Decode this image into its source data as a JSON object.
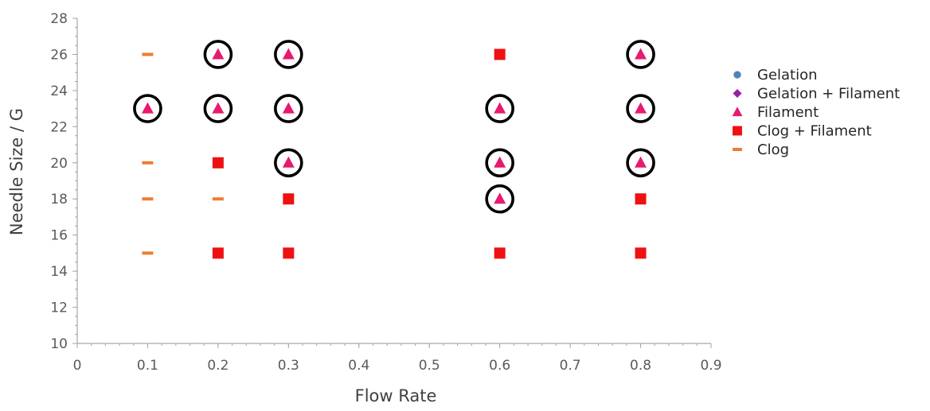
{
  "chart_data": {
    "type": "scatter",
    "title": "",
    "xlabel": "Flow Rate",
    "ylabel": "Needle Size / G",
    "xlim": [
      0,
      0.9
    ],
    "ylim": [
      10,
      28
    ],
    "x_ticks": [
      "0",
      "0.1",
      "0.2",
      "0.3",
      "0.4",
      "0.5",
      "0.6",
      "0.7",
      "0.8",
      "0.9"
    ],
    "y_ticks": [
      "10",
      "12",
      "14",
      "16",
      "18",
      "20",
      "22",
      "24",
      "26",
      "28"
    ],
    "grid": false,
    "legend_position": "right",
    "series": [
      {
        "name": "Gelation",
        "marker": "circle",
        "color": "#4f81bd",
        "points": []
      },
      {
        "name": "Gelation + Filament",
        "marker": "diamond",
        "color": "#9b1fa3",
        "points": []
      },
      {
        "name": "Filament",
        "marker": "triangle",
        "color": "#e8196f",
        "points": [
          {
            "x": 0.1,
            "y": 23
          },
          {
            "x": 0.2,
            "y": 26
          },
          {
            "x": 0.2,
            "y": 23
          },
          {
            "x": 0.3,
            "y": 26
          },
          {
            "x": 0.3,
            "y": 23
          },
          {
            "x": 0.3,
            "y": 20
          },
          {
            "x": 0.6,
            "y": 23
          },
          {
            "x": 0.6,
            "y": 20
          },
          {
            "x": 0.6,
            "y": 18
          },
          {
            "x": 0.8,
            "y": 26
          },
          {
            "x": 0.8,
            "y": 23
          },
          {
            "x": 0.8,
            "y": 20
          }
        ]
      },
      {
        "name": "Clog + Filament",
        "marker": "square",
        "color": "#ee1111",
        "points": [
          {
            "x": 0.2,
            "y": 20
          },
          {
            "x": 0.2,
            "y": 15
          },
          {
            "x": 0.3,
            "y": 18
          },
          {
            "x": 0.3,
            "y": 15
          },
          {
            "x": 0.6,
            "y": 26
          },
          {
            "x": 0.6,
            "y": 15
          },
          {
            "x": 0.8,
            "y": 18
          },
          {
            "x": 0.8,
            "y": 15
          }
        ]
      },
      {
        "name": "Clog",
        "marker": "dash",
        "color": "#ed7d31",
        "points": [
          {
            "x": 0.1,
            "y": 26
          },
          {
            "x": 0.1,
            "y": 20
          },
          {
            "x": 0.1,
            "y": 18
          },
          {
            "x": 0.1,
            "y": 15
          },
          {
            "x": 0.2,
            "y": 18
          }
        ]
      }
    ],
    "highlighted": [
      {
        "x": 0.1,
        "y": 23
      },
      {
        "x": 0.2,
        "y": 26
      },
      {
        "x": 0.2,
        "y": 23
      },
      {
        "x": 0.3,
        "y": 26
      },
      {
        "x": 0.3,
        "y": 23
      },
      {
        "x": 0.3,
        "y": 20
      },
      {
        "x": 0.6,
        "y": 23
      },
      {
        "x": 0.6,
        "y": 20
      },
      {
        "x": 0.6,
        "y": 18
      },
      {
        "x": 0.8,
        "y": 26
      },
      {
        "x": 0.8,
        "y": 23
      },
      {
        "x": 0.8,
        "y": 20
      }
    ]
  }
}
